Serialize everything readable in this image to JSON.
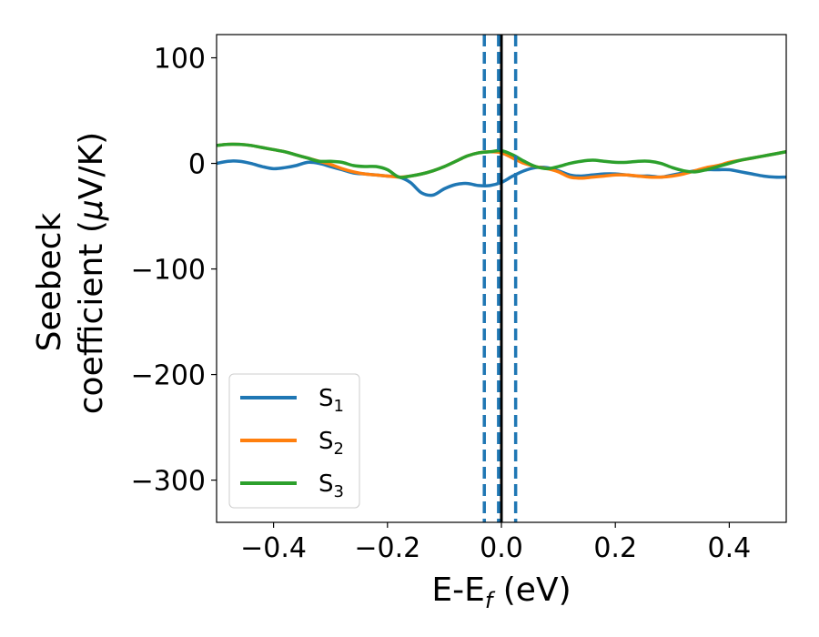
{
  "chart_data": {
    "type": "line",
    "title": "",
    "xlabel": "E-E",
    "xlabel_sub": "f",
    "xlabel_unit": " (eV)",
    "ylabel_line1": "Seebeck",
    "ylabel_line2": "coefficient  (",
    "ylabel_mu": "μ",
    "ylabel_unit": "V/K)",
    "xlim": [
      -0.5,
      0.5
    ],
    "ylim": [
      -340,
      122
    ],
    "xticks": [
      -0.4,
      -0.2,
      0.0,
      0.2,
      0.4
    ],
    "xtick_labels": [
      "−0.4",
      "−0.2",
      "0.0",
      "0.2",
      "0.4"
    ],
    "yticks": [
      100,
      0,
      -100,
      -200,
      -300
    ],
    "ytick_labels": [
      "100",
      "0",
      "−100",
      "−200",
      "−300"
    ],
    "grid": false,
    "legend_position": "lower-left",
    "vlines": [
      {
        "x": 0.0,
        "color": "#000000",
        "style": "solid"
      },
      {
        "x": -0.005,
        "color": "#1f77b4",
        "style": "dashed"
      },
      {
        "x": -0.03,
        "color": "#1f77b4",
        "style": "dashed"
      },
      {
        "x": 0.025,
        "color": "#1f77b4",
        "style": "dashed"
      }
    ],
    "x": [
      -0.5,
      -0.48,
      -0.46,
      -0.44,
      -0.42,
      -0.4,
      -0.38,
      -0.36,
      -0.34,
      -0.32,
      -0.3,
      -0.28,
      -0.26,
      -0.24,
      -0.22,
      -0.2,
      -0.18,
      -0.16,
      -0.14,
      -0.12,
      -0.1,
      -0.08,
      -0.06,
      -0.04,
      -0.02,
      0.0,
      0.02,
      0.04,
      0.06,
      0.08,
      0.1,
      0.12,
      0.14,
      0.16,
      0.18,
      0.2,
      0.22,
      0.24,
      0.26,
      0.28,
      0.3,
      0.32,
      0.34,
      0.36,
      0.38,
      0.4,
      0.42,
      0.44,
      0.46,
      0.48,
      0.5
    ],
    "series": [
      {
        "name": "S",
        "name_sub": "1",
        "color": "#1f77b4",
        "values": [
          0,
          2,
          2,
          0,
          -3,
          -5,
          -4,
          -2,
          1,
          0,
          -3,
          -6,
          -9,
          -10,
          -11,
          -12,
          -13,
          -18,
          -28,
          -30,
          -24,
          -20,
          -19,
          -21,
          -21,
          -18,
          -12,
          -7,
          -4,
          -4,
          -7,
          -11,
          -12,
          -11,
          -10,
          -10,
          -11,
          -12,
          -12,
          -13,
          -11,
          -9,
          -7,
          -6,
          -6,
          -6,
          -8,
          -10,
          -12,
          -13,
          -13
        ]
      },
      {
        "name": "S",
        "name_sub": "2",
        "color": "#ff7f0e",
        "values": [
          17,
          18,
          18,
          17,
          15,
          13,
          11,
          8,
          5,
          2,
          -1,
          -5,
          -8,
          -10,
          -11,
          -12,
          -13,
          -12,
          -10,
          -7,
          -3,
          2,
          7,
          10,
          11,
          10,
          5,
          0,
          -3,
          -5,
          -8,
          -13,
          -14,
          -13,
          -12,
          -11,
          -11,
          -12,
          -13,
          -13,
          -12,
          -10,
          -7,
          -4,
          -2,
          1,
          3,
          5,
          7,
          9,
          11
        ]
      },
      {
        "name": "S",
        "name_sub": "3",
        "color": "#2ca02c",
        "values": [
          17,
          18,
          18,
          17,
          15,
          13,
          11,
          8,
          5,
          2,
          2,
          1,
          -2,
          -3,
          -3,
          -6,
          -13,
          -12,
          -10,
          -7,
          -3,
          2,
          7,
          10,
          11,
          12,
          8,
          2,
          -3,
          -5,
          -3,
          0,
          2,
          3,
          2,
          1,
          1,
          2,
          2,
          0,
          -4,
          -7,
          -8,
          -6,
          -3,
          0,
          3,
          5,
          7,
          9,
          11
        ]
      }
    ]
  }
}
